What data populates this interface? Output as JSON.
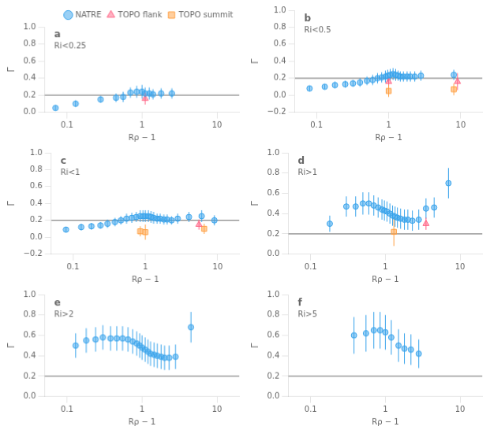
{
  "chart_data": [
    {
      "type": "scatter",
      "title": "a",
      "subtitle": "Ri<0.25",
      "xlabel": "Rρ − 1",
      "ylabel": "Γ",
      "log": "x",
      "grid": false,
      "legend": "upper right",
      "xlim": [
        0.05,
        20
      ],
      "xticks": [
        0.1,
        1,
        10
      ],
      "ylim": [
        0,
        1.0
      ],
      "yticks": [
        {
          "value": 0,
          "label": "0.0"
        },
        0.2,
        0.4,
        0.6,
        0.8,
        {
          "value": 1,
          "label": "1.0"
        }
      ],
      "hline": 0.2,
      "series": [
        {
          "name": "NATRE",
          "marker": "circle",
          "x": [
            0.07,
            0.13,
            0.28,
            0.45,
            0.56,
            0.7,
            0.85,
            1.0,
            1.1,
            1.25,
            1.4,
            1.8,
            2.5
          ],
          "values": [
            0.05,
            0.1,
            0.15,
            0.17,
            0.18,
            0.23,
            0.24,
            0.24,
            0.22,
            0.22,
            0.21,
            0.22,
            0.22
          ],
          "yerr": [
            0.03,
            0.04,
            0.04,
            0.05,
            0.06,
            0.06,
            0.07,
            0.08,
            0.07,
            0.07,
            0.06,
            0.06,
            0.06
          ]
        },
        {
          "name": "TOPO flank",
          "marker": "triangle",
          "x": [
            1.1
          ],
          "values": [
            0.16
          ],
          "yerr": [
            0.07
          ]
        },
        {
          "name": "TOPO summit",
          "marker": "square",
          "x": [],
          "values": [],
          "yerr": []
        }
      ]
    },
    {
      "type": "scatter",
      "title": "b",
      "subtitle": "Ri<0.5",
      "xlabel": "Rρ − 1",
      "ylabel": "Γ",
      "log": "x",
      "grid": false,
      "xlim": [
        0.05,
        20
      ],
      "xticks": [
        0.1,
        1,
        10
      ],
      "ylim": [
        -0.2,
        1.0
      ],
      "yticks": [
        {
          "value": -0.2,
          "label": "−0.2"
        },
        {
          "value": 0,
          "label": "0.0"
        },
        0.2,
        0.4,
        0.6,
        0.8,
        {
          "value": 1,
          "label": "1.0"
        }
      ],
      "hline": 0.2,
      "series": [
        {
          "name": "NATRE",
          "marker": "circle",
          "x": [
            0.08,
            0.13,
            0.18,
            0.25,
            0.32,
            0.4,
            0.5,
            0.6,
            0.7,
            0.8,
            0.9,
            0.97,
            1.05,
            1.15,
            1.25,
            1.35,
            1.45,
            1.6,
            1.8,
            2.0,
            2.3,
            2.8,
            8.0
          ],
          "values": [
            0.08,
            0.1,
            0.12,
            0.13,
            0.14,
            0.15,
            0.17,
            0.18,
            0.2,
            0.21,
            0.22,
            0.23,
            0.24,
            0.25,
            0.24,
            0.23,
            0.22,
            0.22,
            0.22,
            0.22,
            0.22,
            0.23,
            0.24
          ],
          "yerr": [
            0.03,
            0.03,
            0.04,
            0.04,
            0.04,
            0.05,
            0.05,
            0.06,
            0.06,
            0.06,
            0.07,
            0.07,
            0.07,
            0.07,
            0.07,
            0.06,
            0.06,
            0.06,
            0.06,
            0.06,
            0.06,
            0.06,
            0.06
          ]
        },
        {
          "name": "TOPO flank",
          "marker": "triangle",
          "x": [
            1.0,
            9.0
          ],
          "values": [
            0.16,
            0.16
          ],
          "yerr": [
            0.05,
            0.1
          ]
        },
        {
          "name": "TOPO summit",
          "marker": "square",
          "x": [
            1.0,
            8.0
          ],
          "values": [
            0.05,
            0.07
          ],
          "yerr": [
            0.07,
            0.07
          ]
        }
      ]
    },
    {
      "type": "scatter",
      "title": "c",
      "subtitle": "Ri<1",
      "xlabel": "Rρ − 1",
      "ylabel": "Γ",
      "log": "x",
      "grid": false,
      "xlim": [
        0.05,
        20
      ],
      "xticks": [
        0.1,
        1,
        10
      ],
      "ylim": [
        -0.2,
        1.0
      ],
      "yticks": [
        {
          "value": -0.2,
          "label": "−0.2"
        },
        {
          "value": 0,
          "label": "0.0"
        },
        0.2,
        0.4,
        0.6,
        0.8,
        {
          "value": 1,
          "label": "1.0"
        }
      ],
      "hline": 0.2,
      "series": [
        {
          "name": "NATRE",
          "marker": "circle",
          "x": [
            0.08,
            0.13,
            0.18,
            0.24,
            0.3,
            0.38,
            0.46,
            0.55,
            0.65,
            0.75,
            0.85,
            0.93,
            1.0,
            1.1,
            1.2,
            1.3,
            1.45,
            1.6,
            1.8,
            2.0,
            2.3,
            2.8,
            4.0,
            6.0,
            9.0
          ],
          "values": [
            0.09,
            0.12,
            0.13,
            0.14,
            0.16,
            0.18,
            0.2,
            0.22,
            0.23,
            0.24,
            0.25,
            0.25,
            0.25,
            0.25,
            0.24,
            0.23,
            0.22,
            0.22,
            0.21,
            0.21,
            0.2,
            0.22,
            0.24,
            0.25,
            0.2
          ],
          "yerr": [
            0.03,
            0.04,
            0.04,
            0.04,
            0.05,
            0.05,
            0.05,
            0.06,
            0.06,
            0.06,
            0.07,
            0.07,
            0.07,
            0.07,
            0.07,
            0.07,
            0.06,
            0.06,
            0.06,
            0.06,
            0.05,
            0.06,
            0.06,
            0.07,
            0.06
          ]
        },
        {
          "name": "TOPO flank",
          "marker": "triangle",
          "x": [
            5.5
          ],
          "values": [
            0.15
          ],
          "yerr": [
            0.06
          ]
        },
        {
          "name": "TOPO summit",
          "marker": "square",
          "x": [
            0.85,
            1.0,
            6.5
          ],
          "values": [
            0.07,
            0.06,
            0.1
          ],
          "yerr": [
            0.06,
            0.09,
            0.06
          ]
        }
      ]
    },
    {
      "type": "scatter",
      "title": "d",
      "subtitle": "Ri>1",
      "xlabel": "Rρ − 1",
      "ylabel": "Γ",
      "log": "x",
      "grid": false,
      "xlim": [
        0.05,
        20
      ],
      "xticks": [
        0.1,
        1,
        10
      ],
      "ylim": [
        0,
        1.0
      ],
      "yticks": [
        {
          "value": 0,
          "label": "0.0"
        },
        0.2,
        0.4,
        0.6,
        0.8,
        {
          "value": 1,
          "label": "1.0"
        }
      ],
      "hline": 0.2,
      "series": [
        {
          "name": "NATRE",
          "marker": "circle",
          "x": [
            0.18,
            0.3,
            0.4,
            0.5,
            0.6,
            0.7,
            0.8,
            0.9,
            0.97,
            1.05,
            1.15,
            1.25,
            1.35,
            1.45,
            1.6,
            1.8,
            2.0,
            2.3,
            2.8,
            3.5,
            4.5,
            7.0
          ],
          "values": [
            0.3,
            0.47,
            0.47,
            0.5,
            0.5,
            0.48,
            0.46,
            0.44,
            0.43,
            0.42,
            0.4,
            0.38,
            0.37,
            0.36,
            0.35,
            0.34,
            0.34,
            0.33,
            0.34,
            0.45,
            0.46,
            0.7
          ],
          "yerr": [
            0.08,
            0.1,
            0.1,
            0.11,
            0.11,
            0.1,
            0.1,
            0.1,
            0.1,
            0.1,
            0.1,
            0.1,
            0.1,
            0.1,
            0.1,
            0.1,
            0.1,
            0.1,
            0.1,
            0.1,
            0.1,
            0.15
          ]
        },
        {
          "name": "TOPO flank",
          "marker": "triangle",
          "x": [
            3.5
          ],
          "values": [
            0.3
          ],
          "yerr": [
            0.06
          ]
        },
        {
          "name": "TOPO summit",
          "marker": "square",
          "x": [
            1.3
          ],
          "values": [
            0.22
          ],
          "yerr": [
            0.14
          ]
        }
      ]
    },
    {
      "type": "scatter",
      "title": "e",
      "subtitle": "Ri>2",
      "xlabel": "Rρ − 1",
      "ylabel": "Γ",
      "log": "x",
      "grid": false,
      "xlim": [
        0.05,
        20
      ],
      "xticks": [
        0.1,
        1,
        10
      ],
      "ylim": [
        0,
        1.0
      ],
      "yticks": [
        {
          "value": 0,
          "label": "0.0"
        },
        0.2,
        0.4,
        0.6,
        0.8,
        {
          "value": 1,
          "label": "1.0"
        }
      ],
      "hline": 0.2,
      "series": [
        {
          "name": "NATRE",
          "marker": "circle",
          "x": [
            0.13,
            0.18,
            0.24,
            0.3,
            0.38,
            0.46,
            0.55,
            0.65,
            0.75,
            0.85,
            0.93,
            1.0,
            1.1,
            1.2,
            1.3,
            1.45,
            1.6,
            1.8,
            2.0,
            2.3,
            2.8,
            4.5
          ],
          "values": [
            0.5,
            0.55,
            0.56,
            0.58,
            0.57,
            0.57,
            0.57,
            0.56,
            0.54,
            0.52,
            0.5,
            0.48,
            0.46,
            0.44,
            0.42,
            0.41,
            0.4,
            0.39,
            0.38,
            0.38,
            0.39,
            0.68
          ],
          "yerr": [
            0.12,
            0.12,
            0.12,
            0.12,
            0.12,
            0.12,
            0.12,
            0.12,
            0.12,
            0.12,
            0.12,
            0.12,
            0.12,
            0.12,
            0.12,
            0.12,
            0.12,
            0.12,
            0.12,
            0.12,
            0.12,
            0.15
          ]
        }
      ]
    },
    {
      "type": "scatter",
      "title": "f",
      "subtitle": "Ri>5",
      "xlabel": "Rρ − 1",
      "ylabel": "Γ",
      "log": "x",
      "grid": false,
      "xlim": [
        0.05,
        20
      ],
      "xticks": [
        0.1,
        1,
        10
      ],
      "ylim": [
        0,
        1.0
      ],
      "yticks": [
        {
          "value": 0,
          "label": "0.0"
        },
        0.2,
        0.4,
        0.6,
        0.8,
        {
          "value": 1,
          "label": "1.0"
        }
      ],
      "hline": 0.2,
      "series": [
        {
          "name": "NATRE",
          "marker": "circle",
          "x": [
            0.38,
            0.55,
            0.7,
            0.85,
            1.0,
            1.2,
            1.5,
            1.8,
            2.2,
            2.8
          ],
          "values": [
            0.6,
            0.62,
            0.65,
            0.65,
            0.63,
            0.58,
            0.5,
            0.47,
            0.46,
            0.42
          ],
          "yerr": [
            0.18,
            0.18,
            0.18,
            0.18,
            0.17,
            0.17,
            0.16,
            0.15,
            0.15,
            0.14
          ]
        }
      ]
    }
  ]
}
